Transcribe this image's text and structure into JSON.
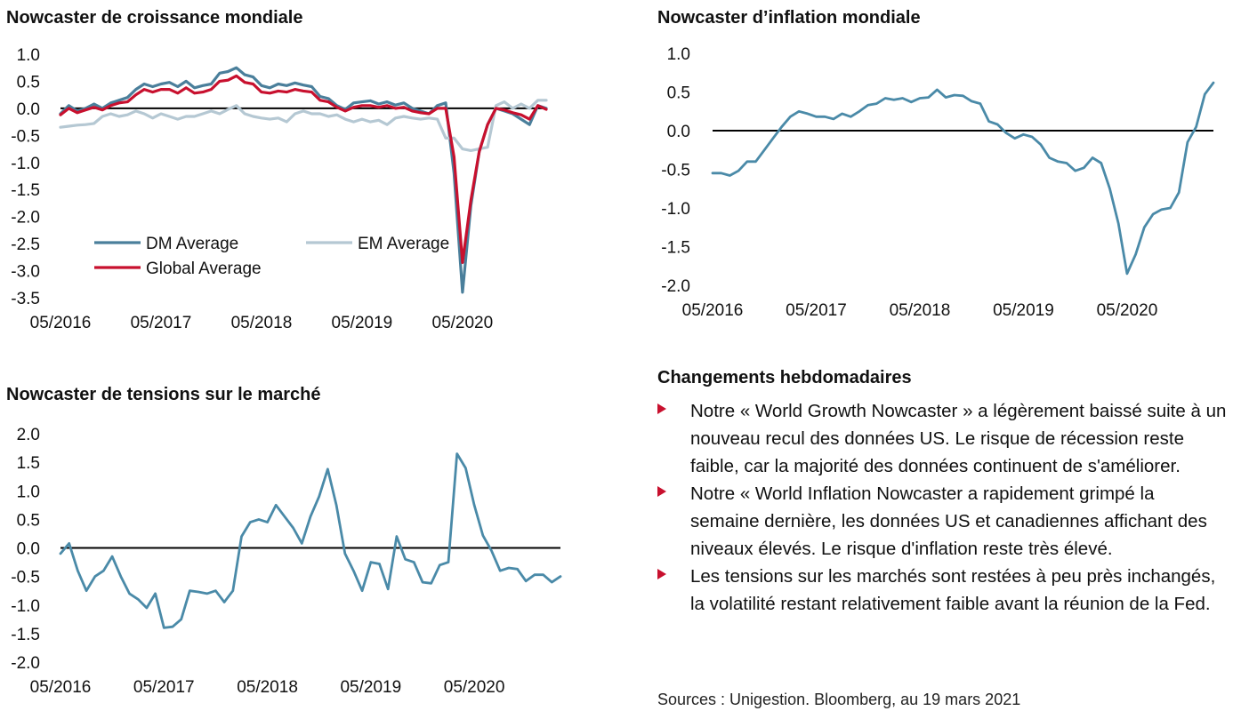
{
  "chart_data": [
    {
      "id": "growth",
      "type": "line",
      "title": "Nowcaster de croissance mondiale",
      "xlabel": "",
      "ylabel": "",
      "x_ticks": [
        "05/2016",
        "05/2017",
        "05/2018",
        "05/2019",
        "05/2020"
      ],
      "y_ticks": [
        "1.0",
        "0.5",
        "0.0",
        "-0.5",
        "-1.0",
        "-1.5",
        "-2.0",
        "-2.5",
        "-3.0",
        "-3.5"
      ],
      "ylim": [
        -3.5,
        1.0
      ],
      "x_range": [
        "2016-05",
        "2021-03"
      ],
      "grid": false,
      "zero_line": true,
      "legend_position": "bottom-left",
      "series": [
        {
          "name": "DM Average",
          "color": "#4a7f9b",
          "values": [
            -0.1,
            0.05,
            -0.05,
            0.0,
            0.08,
            0.0,
            0.1,
            0.15,
            0.2,
            0.35,
            0.45,
            0.4,
            0.45,
            0.48,
            0.4,
            0.5,
            0.38,
            0.42,
            0.45,
            0.65,
            0.68,
            0.75,
            0.62,
            0.58,
            0.42,
            0.38,
            0.45,
            0.42,
            0.47,
            0.43,
            0.4,
            0.22,
            0.18,
            0.05,
            -0.02,
            0.1,
            0.12,
            0.14,
            0.08,
            0.12,
            0.06,
            0.1,
            0.0,
            -0.05,
            -0.1,
            0.05,
            0.1,
            -1.2,
            -3.4,
            -1.8,
            -0.8,
            -0.3,
            0.0,
            -0.05,
            -0.1,
            -0.2,
            -0.3,
            0.05,
            0.0
          ]
        },
        {
          "name": "EM Average",
          "color": "#b5c8d3",
          "values": [
            -0.35,
            -0.33,
            -0.31,
            -0.3,
            -0.28,
            -0.15,
            -0.1,
            -0.15,
            -0.12,
            -0.05,
            -0.1,
            -0.18,
            -0.1,
            -0.15,
            -0.2,
            -0.15,
            -0.15,
            -0.1,
            -0.05,
            -0.1,
            -0.02,
            0.05,
            -0.1,
            -0.15,
            -0.18,
            -0.2,
            -0.18,
            -0.25,
            -0.1,
            -0.05,
            -0.1,
            -0.1,
            -0.15,
            -0.12,
            -0.2,
            -0.25,
            -0.2,
            -0.25,
            -0.22,
            -0.3,
            -0.18,
            -0.15,
            -0.18,
            -0.2,
            -0.18,
            -0.2,
            -0.55,
            -0.55,
            -0.75,
            -0.78,
            -0.75,
            -0.72,
            0.05,
            0.12,
            0.0,
            0.08,
            0.0,
            0.15,
            0.15
          ]
        },
        {
          "name": "Global Average",
          "color": "#c8102e",
          "values": [
            -0.12,
            0.0,
            -0.08,
            -0.03,
            0.02,
            -0.03,
            0.05,
            0.1,
            0.12,
            0.25,
            0.35,
            0.3,
            0.35,
            0.35,
            0.28,
            0.38,
            0.28,
            0.3,
            0.35,
            0.5,
            0.52,
            0.6,
            0.48,
            0.45,
            0.3,
            0.28,
            0.32,
            0.3,
            0.35,
            0.32,
            0.3,
            0.15,
            0.12,
            0.02,
            -0.05,
            0.02,
            0.05,
            0.05,
            0.02,
            0.05,
            0.0,
            0.02,
            -0.05,
            -0.08,
            -0.1,
            0.0,
            0.0,
            -0.9,
            -2.85,
            -1.7,
            -0.8,
            -0.3,
            0.0,
            -0.03,
            -0.08,
            -0.12,
            -0.2,
            0.05,
            -0.02
          ]
        }
      ]
    },
    {
      "id": "inflation",
      "type": "line",
      "title": "Nowcaster d’inflation mondiale",
      "xlabel": "",
      "ylabel": "",
      "x_ticks": [
        "05/2016",
        "05/2017",
        "05/2018",
        "05/2019",
        "05/2020"
      ],
      "y_ticks": [
        "1.0",
        "0.5",
        "0.0",
        "-0.5",
        "-1.0",
        "-1.5",
        "-2.0"
      ],
      "ylim": [
        -2.0,
        1.0
      ],
      "x_range": [
        "2016-05",
        "2021-03"
      ],
      "grid": false,
      "zero_line": true,
      "series": [
        {
          "color": "#4a8aa8",
          "values": [
            -0.55,
            -0.55,
            -0.58,
            -0.52,
            -0.4,
            -0.4,
            -0.25,
            -0.1,
            0.05,
            0.18,
            0.25,
            0.22,
            0.18,
            0.18,
            0.15,
            0.22,
            0.18,
            0.25,
            0.33,
            0.35,
            0.42,
            0.4,
            0.42,
            0.37,
            0.42,
            0.43,
            0.53,
            0.43,
            0.46,
            0.45,
            0.38,
            0.35,
            0.12,
            0.08,
            -0.03,
            -0.1,
            -0.05,
            -0.08,
            -0.18,
            -0.35,
            -0.4,
            -0.42,
            -0.52,
            -0.48,
            -0.35,
            -0.42,
            -0.75,
            -1.2,
            -1.85,
            -1.6,
            -1.25,
            -1.08,
            -1.02,
            -1.0,
            -0.8,
            -0.15,
            0.05,
            0.47,
            0.62
          ]
        }
      ]
    },
    {
      "id": "tension",
      "type": "line",
      "title": "Nowcaster de tensions sur le marché",
      "xlabel": "",
      "ylabel": "",
      "x_ticks": [
        "05/2016",
        "05/2017",
        "05/2018",
        "05/2019",
        "05/2020"
      ],
      "y_ticks": [
        "2.0",
        "1.5",
        "1.0",
        "0.5",
        "0.0",
        "-0.5",
        "-1.0",
        "-1.5",
        "-2.0"
      ],
      "ylim": [
        -2.0,
        2.0
      ],
      "x_range": [
        "2016-05",
        "2021-03"
      ],
      "grid": false,
      "zero_line": true,
      "series": [
        {
          "color": "#4a8aa8",
          "values": [
            -0.1,
            0.08,
            -0.4,
            -0.75,
            -0.5,
            -0.4,
            -0.15,
            -0.5,
            -0.8,
            -0.9,
            -1.05,
            -0.8,
            -1.4,
            -1.38,
            -1.25,
            -0.75,
            -0.77,
            -0.8,
            -0.75,
            -0.95,
            -0.75,
            0.2,
            0.45,
            0.5,
            0.45,
            0.75,
            0.55,
            0.35,
            0.08,
            0.55,
            0.9,
            1.38,
            0.75,
            -0.1,
            -0.4,
            -0.75,
            -0.25,
            -0.28,
            -0.72,
            0.2,
            -0.2,
            -0.25,
            -0.6,
            -0.62,
            -0.3,
            -0.25,
            1.65,
            1.4,
            0.75,
            0.22,
            -0.05,
            -0.4,
            -0.35,
            -0.37,
            -0.58,
            -0.47,
            -0.47,
            -0.6,
            -0.5
          ]
        }
      ]
    }
  ],
  "notes": {
    "title": "Changements hebdomadaires",
    "items": [
      "Notre « World Growth Nowcaster » a légèrement baissé suite à un nouveau recul des données US. Le risque de récession reste faible, car la majorité des données continuent de s'améliorer.",
      "Notre « World Inflation Nowcaster a rapidement grimpé la semaine dernière, les données US et canadiennes affichant des niveaux élevés. Le risque d'inflation reste très élevé.",
      "Les tensions sur les marchés sont restées à peu près inchangés, la volatilité restant relativement faible avant la réunion de la Fed."
    ]
  },
  "source": "Sources : Unigestion. Bloomberg, au 19 mars 2021",
  "colors": {
    "accent_red": "#c8102e",
    "zero_line": "#000000"
  }
}
